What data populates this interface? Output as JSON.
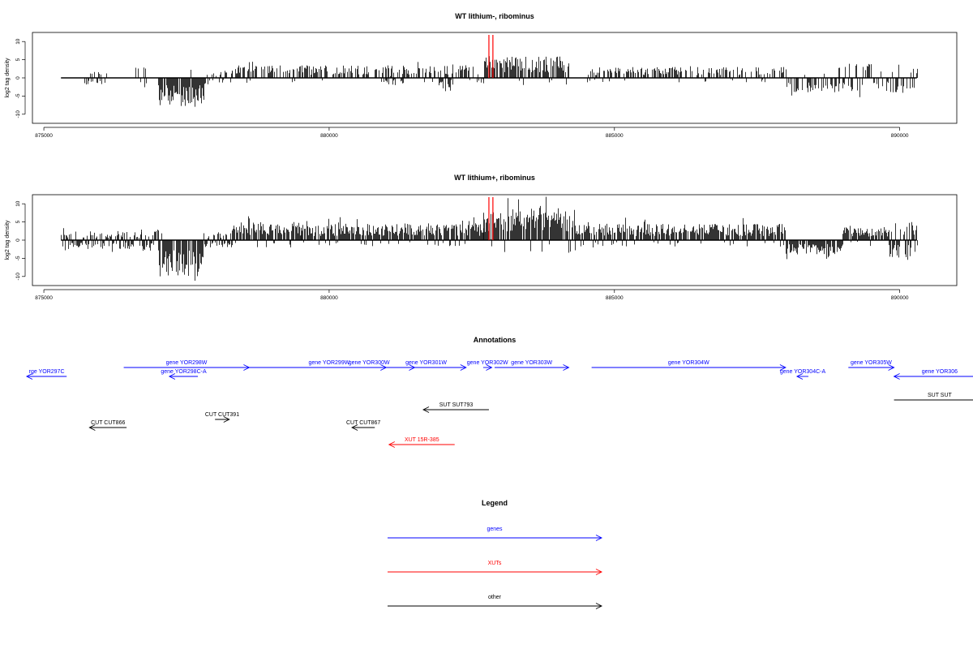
{
  "colors": {
    "genes": "#0000ff",
    "xuts": "#ff0000",
    "other": "#000000",
    "marker": "#ff0000"
  },
  "chart_data": [
    {
      "type": "bar",
      "title": "WT lithium-, ribominus",
      "ylabel": "log2 tag density",
      "xlim": [
        874800,
        891000
      ],
      "ylim": [
        -12.5,
        12.5
      ],
      "xticks": [
        875000,
        880000,
        885000,
        890000
      ],
      "xtick_labels": [
        "875000",
        "880000",
        "885000",
        "890000"
      ],
      "yticks": [
        10,
        5,
        0,
        -5,
        -10
      ],
      "ytick_labels": [
        "10",
        "5",
        "0",
        "-5",
        "-10"
      ],
      "baseline": {
        "from": 875300,
        "to": 890300
      },
      "markers": [
        882800,
        882870
      ],
      "density": "sparse",
      "regions": [
        {
          "from": 875700,
          "to": 876100,
          "level": 2,
          "sign": "both"
        },
        {
          "from": 876600,
          "to": 876850,
          "level": 3,
          "sign": "both"
        },
        {
          "from": 877000,
          "to": 877800,
          "level": -8,
          "sign": "neg"
        },
        {
          "from": 877800,
          "to": 878300,
          "level": 2,
          "sign": "both"
        },
        {
          "from": 878300,
          "to": 882700,
          "level": 3.5,
          "sign": "pos"
        },
        {
          "from": 880900,
          "to": 881300,
          "level": -2,
          "sign": "neg"
        },
        {
          "from": 881900,
          "to": 882200,
          "level": -3,
          "sign": "neg"
        },
        {
          "from": 882700,
          "to": 884200,
          "level": 6,
          "sign": "pos"
        },
        {
          "from": 884500,
          "to": 888000,
          "level": 3,
          "sign": "pos"
        },
        {
          "from": 888000,
          "to": 889000,
          "level": -4,
          "sign": "neg"
        },
        {
          "from": 888900,
          "to": 890300,
          "level": 4,
          "sign": "both"
        }
      ]
    },
    {
      "type": "bar",
      "title": "WT lithium+, ribominus",
      "ylabel": "log2 tag density",
      "xlim": [
        874800,
        891000
      ],
      "ylim": [
        -12.5,
        12.5
      ],
      "xticks": [
        875000,
        880000,
        885000,
        890000
      ],
      "xtick_labels": [
        "875000",
        "880000",
        "885000",
        "890000"
      ],
      "yticks": [
        10,
        5,
        0,
        -5,
        -10
      ],
      "ytick_labels": [
        "10",
        "5",
        "0",
        "-5",
        "-10"
      ],
      "baseline": {
        "from": 875300,
        "to": 890300
      },
      "markers": [
        882800,
        882870
      ],
      "density": "dense",
      "regions": [
        {
          "from": 875300,
          "to": 876700,
          "level": 2.5,
          "sign": "both"
        },
        {
          "from": 876700,
          "to": 877000,
          "level": -3,
          "sign": "both"
        },
        {
          "from": 877000,
          "to": 877800,
          "level": -10,
          "sign": "neg"
        },
        {
          "from": 877800,
          "to": 878300,
          "level": 2,
          "sign": "both"
        },
        {
          "from": 878300,
          "to": 879500,
          "level": 5,
          "sign": "pos"
        },
        {
          "from": 879500,
          "to": 882700,
          "level": 4.5,
          "sign": "pos"
        },
        {
          "from": 882700,
          "to": 884300,
          "level": 9,
          "sign": "pos"
        },
        {
          "from": 884300,
          "to": 888000,
          "level": 4.5,
          "sign": "pos"
        },
        {
          "from": 888000,
          "to": 889000,
          "level": -4,
          "sign": "neg"
        },
        {
          "from": 889000,
          "to": 889800,
          "level": 4,
          "sign": "pos"
        },
        {
          "from": 889800,
          "to": 890300,
          "level": -5,
          "sign": "both"
        }
      ]
    }
  ],
  "annotations": {
    "title": "Annotations",
    "items": [
      {
        "label": "rge YOR297C",
        "type": "genes",
        "from": 875400,
        "to": 874700,
        "row": 1
      },
      {
        "label": "gene YOR298W",
        "type": "genes",
        "from": 876400,
        "to": 878600,
        "row": 0
      },
      {
        "label": "gene YOR298C-A",
        "type": "genes",
        "from": 877700,
        "to": 877200,
        "row": 1
      },
      {
        "label": "gene YOR299W",
        "type": "genes",
        "from": 878500,
        "to": 881500,
        "row": 0
      },
      {
        "label": "gene YOR300W",
        "type": "genes",
        "from": 880400,
        "to": 881000,
        "row": 0
      },
      {
        "label": "gene YOR301W",
        "type": "genes",
        "from": 881000,
        "to": 882400,
        "row": 0
      },
      {
        "label": "gene YOR302W",
        "type": "genes",
        "from": 882700,
        "to": 882850,
        "row": 0
      },
      {
        "label": "gene YOR303W",
        "type": "genes",
        "from": 882900,
        "to": 884200,
        "row": 0
      },
      {
        "label": "gene YOR304W",
        "type": "genes",
        "from": 884600,
        "to": 888000,
        "row": 0
      },
      {
        "label": "gene YOR304C-A",
        "type": "genes",
        "from": 888400,
        "to": 888200,
        "row": 1
      },
      {
        "label": "gene YOR305W",
        "type": "genes",
        "from": 889100,
        "to": 889900,
        "row": 0
      },
      {
        "label": "gene YOR306",
        "type": "genes",
        "from": 891500,
        "to": 889900,
        "row": 1
      },
      {
        "label": "SUT SUT793",
        "type": "other",
        "from": 882800,
        "to": 881650,
        "row": 2
      },
      {
        "label": "SUT SUT",
        "type": "other",
        "from": 889900,
        "to": 891500,
        "row": 3,
        "noarrow": true
      },
      {
        "label": "CUT CUT391",
        "type": "other",
        "from": 878000,
        "to": 878250,
        "row": 4
      },
      {
        "label": "CUT CUT866",
        "type": "other",
        "from": 876450,
        "to": 875800,
        "row": 5
      },
      {
        "label": "CUT CUT867",
        "type": "other",
        "from": 880800,
        "to": 880400,
        "row": 5
      },
      {
        "label": "XUT 15R-385",
        "type": "xuts",
        "from": 882200,
        "to": 881050,
        "row": 6
      }
    ]
  },
  "legend": {
    "title": "Legend",
    "items": [
      {
        "label": "genes",
        "type": "genes"
      },
      {
        "label": "XUTs",
        "type": "xuts"
      },
      {
        "label": "other",
        "type": "other"
      }
    ]
  }
}
